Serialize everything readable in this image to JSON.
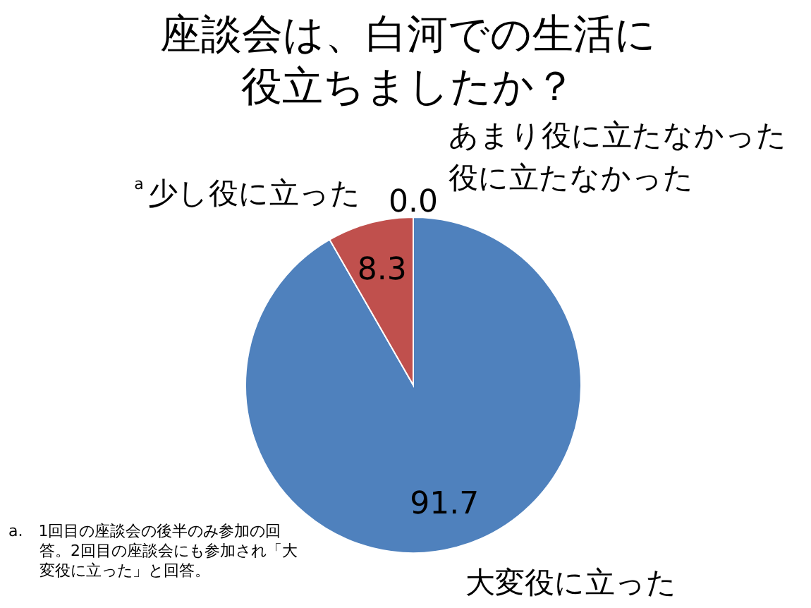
{
  "chart_data": {
    "type": "pie",
    "title": "座談会は、白河での生活に役立ちましたか？",
    "categories": [
      "大変役に立った",
      "少し役に立った",
      "あまり役に立たなかった",
      "役に立たなかった"
    ],
    "values": [
      91.7,
      8.3,
      0.0,
      0.0
    ],
    "colors": [
      "#4f81bd",
      "#c0504d",
      "#9bbb59",
      "#8064a2"
    ],
    "value_labels": [
      "91.7",
      "8.3",
      "0.0",
      null
    ],
    "annotations": [
      "a",
      "a.　1回目の座談会の後半のみ参加の回答。2回目の座談会にも参加され「大変役に立った」と回答。"
    ]
  }
}
